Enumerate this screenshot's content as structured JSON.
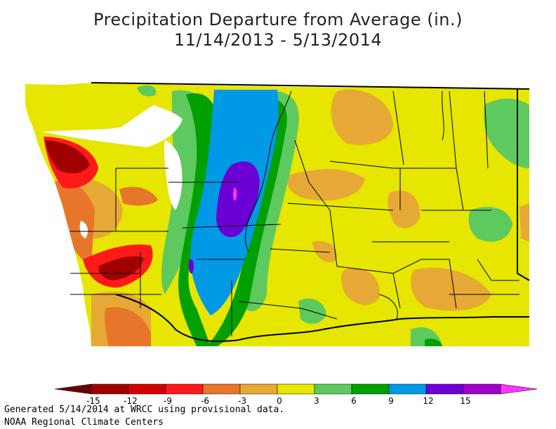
{
  "title": {
    "line1": "Precipitation Departure from Average (in.)",
    "line2": "11/14/2013 - 5/13/2014"
  },
  "legend": {
    "tick_labels": [
      "-15",
      "-12",
      "-9",
      "-6",
      "-3",
      "0",
      "3",
      "6",
      "9",
      "12",
      "15"
    ],
    "colors": [
      "#a00000",
      "#d40000",
      "#ff1a1a",
      "#e8762a",
      "#e6a935",
      "#e6e600",
      "#5ec95e",
      "#00a000",
      "#0099e6",
      "#6a00d4",
      "#a000c8"
    ],
    "low_arrow_color": "#6b0000",
    "high_arrow_color": "#ff33ff"
  },
  "colors": {
    "ocean": "#ffffff",
    "background": "#e6e600"
  },
  "footer": {
    "line1": "Generated 5/14/2014 at WRCC using provisional data.",
    "line2": "NOAA Regional Climate Centers"
  }
}
